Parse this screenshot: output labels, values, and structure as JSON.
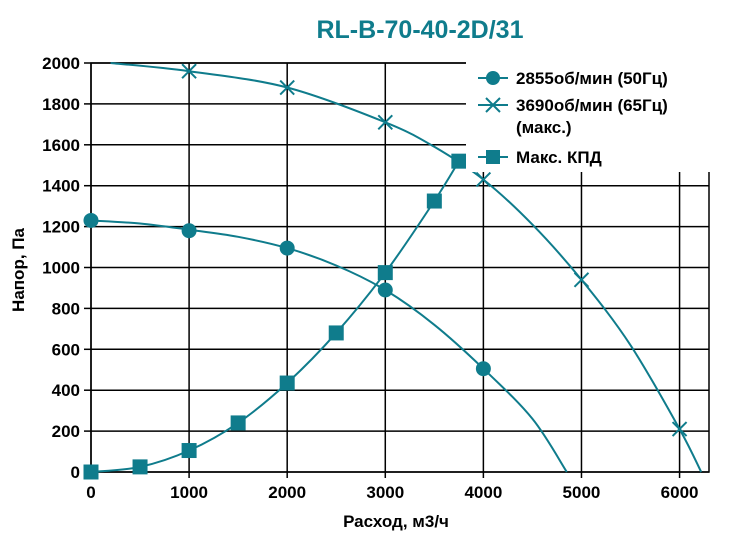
{
  "chart_data": {
    "type": "line",
    "title": "RL-B-70-40-2D/31",
    "xlabel": "Расход, м3/ч",
    "ylabel": "Напор, Па",
    "xlim": [
      0,
      6300
    ],
    "ylim": [
      0,
      2000
    ],
    "x_ticks": [
      0,
      1000,
      2000,
      3000,
      4000,
      5000,
      6000
    ],
    "y_ticks": [
      0,
      200,
      400,
      600,
      800,
      1000,
      1200,
      1400,
      1600,
      1800,
      2000
    ],
    "grid": true,
    "legend_position": "top-right",
    "line_color": "#0f7c8c",
    "series": [
      {
        "name": "2855об/мин (50Гц)",
        "marker": "circle",
        "curve": [
          [
            0,
            1230
          ],
          [
            500,
            1215
          ],
          [
            1000,
            1185
          ],
          [
            1500,
            1150
          ],
          [
            2000,
            1095
          ],
          [
            2500,
            1010
          ],
          [
            3000,
            890
          ],
          [
            3500,
            720
          ],
          [
            4000,
            505
          ],
          [
            4500,
            260
          ],
          [
            4850,
            0
          ]
        ],
        "markers": [
          [
            0,
            1230
          ],
          [
            1000,
            1180
          ],
          [
            2000,
            1095
          ],
          [
            3000,
            890
          ],
          [
            4000,
            505
          ]
        ]
      },
      {
        "name": "3690об/мин  (65Гц)",
        "name_line2": "(макс.)",
        "marker": "x",
        "curve": [
          [
            200,
            2000
          ],
          [
            1000,
            1960
          ],
          [
            2000,
            1880
          ],
          [
            3000,
            1710
          ],
          [
            3500,
            1590
          ],
          [
            4000,
            1430
          ],
          [
            4500,
            1210
          ],
          [
            5000,
            940
          ],
          [
            5500,
            620
          ],
          [
            6000,
            210
          ],
          [
            6220,
            0
          ]
        ],
        "markers": [
          [
            1000,
            1960
          ],
          [
            2000,
            1880
          ],
          [
            3000,
            1710
          ],
          [
            4000,
            1430
          ],
          [
            5000,
            940
          ],
          [
            6000,
            210
          ]
        ]
      },
      {
        "name": "Макс. КПД",
        "marker": "square",
        "curve": [
          [
            0,
            0
          ],
          [
            500,
            25
          ],
          [
            1000,
            105
          ],
          [
            1500,
            240
          ],
          [
            2000,
            435
          ],
          [
            2500,
            680
          ],
          [
            3000,
            975
          ],
          [
            3500,
            1325
          ],
          [
            3750,
            1520
          ]
        ],
        "markers": [
          [
            0,
            0
          ],
          [
            500,
            25
          ],
          [
            1000,
            105
          ],
          [
            1500,
            240
          ],
          [
            2000,
            435
          ],
          [
            2500,
            680
          ],
          [
            3000,
            975
          ],
          [
            3500,
            1325
          ],
          [
            3750,
            1520
          ]
        ]
      }
    ]
  }
}
